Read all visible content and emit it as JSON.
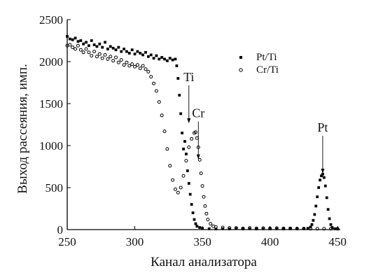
{
  "chart_data": {
    "type": "scatter",
    "xlabel": "Канал анализатора",
    "ylabel": "Выход рассеяния, имп.",
    "xlim": [
      250,
      452
    ],
    "ylim": [
      0,
      2500
    ],
    "x_ticks": [
      "250",
      "300",
      "350",
      "400",
      "450"
    ],
    "y_ticks": [
      "0",
      "500",
      "1000",
      "1500",
      "2000",
      "2500"
    ],
    "grid": false,
    "legend_position": "top-right",
    "series": [
      {
        "name": "Pt/Ti",
        "marker": "square",
        "color": "#000000",
        "points": [
          [
            250,
            2300
          ],
          [
            252,
            2270
          ],
          [
            254,
            2260
          ],
          [
            256,
            2280
          ],
          [
            258,
            2240
          ],
          [
            260,
            2250
          ],
          [
            262,
            2210
          ],
          [
            264,
            2230
          ],
          [
            266,
            2190
          ],
          [
            268,
            2250
          ],
          [
            270,
            2200
          ],
          [
            272,
            2180
          ],
          [
            274,
            2210
          ],
          [
            276,
            2170
          ],
          [
            278,
            2230
          ],
          [
            280,
            2150
          ],
          [
            282,
            2180
          ],
          [
            284,
            2160
          ],
          [
            286,
            2140
          ],
          [
            288,
            2170
          ],
          [
            290,
            2120
          ],
          [
            292,
            2150
          ],
          [
            294,
            2120
          ],
          [
            296,
            2100
          ],
          [
            298,
            2140
          ],
          [
            300,
            2090
          ],
          [
            302,
            2120
          ],
          [
            304,
            2100
          ],
          [
            306,
            2080
          ],
          [
            308,
            2110
          ],
          [
            310,
            2060
          ],
          [
            312,
            2080
          ],
          [
            314,
            2040
          ],
          [
            316,
            2070
          ],
          [
            318,
            2030
          ],
          [
            320,
            2050
          ],
          [
            322,
            2030
          ],
          [
            324,
            2010
          ],
          [
            326,
            2040
          ],
          [
            328,
            2020
          ],
          [
            330,
            2030
          ],
          [
            331,
            1950
          ],
          [
            332,
            1800
          ],
          [
            333,
            1600
          ],
          [
            334,
            1380
          ],
          [
            335,
            1150
          ],
          [
            336,
            960
          ],
          [
            337,
            1050
          ],
          [
            338,
            900
          ],
          [
            339,
            700
          ],
          [
            340,
            550
          ],
          [
            341,
            420
          ],
          [
            342,
            300
          ],
          [
            343,
            200
          ],
          [
            344,
            120
          ],
          [
            345,
            70
          ],
          [
            346,
            40
          ],
          [
            348,
            25
          ],
          [
            350,
            15
          ],
          [
            355,
            10
          ],
          [
            360,
            8
          ],
          [
            365,
            10
          ],
          [
            370,
            8
          ],
          [
            375,
            12
          ],
          [
            380,
            8
          ],
          [
            385,
            10
          ],
          [
            390,
            8
          ],
          [
            395,
            10
          ],
          [
            400,
            8
          ],
          [
            405,
            10
          ],
          [
            410,
            8
          ],
          [
            415,
            10
          ],
          [
            420,
            10
          ],
          [
            425,
            12
          ],
          [
            428,
            15
          ],
          [
            430,
            30
          ],
          [
            431,
            60
          ],
          [
            432,
            110
          ],
          [
            433,
            180
          ],
          [
            434,
            280
          ],
          [
            435,
            390
          ],
          [
            436,
            500
          ],
          [
            437,
            590
          ],
          [
            438,
            640
          ],
          [
            439,
            660
          ],
          [
            440,
            620
          ],
          [
            441,
            520
          ],
          [
            442,
            380
          ],
          [
            443,
            240
          ],
          [
            444,
            130
          ],
          [
            445,
            60
          ],
          [
            446,
            25
          ],
          [
            448,
            10
          ],
          [
            450,
            8
          ]
        ]
      },
      {
        "name": "Cr/Ti",
        "marker": "circle",
        "color": "#000000",
        "points": [
          [
            250,
            2190
          ],
          [
            252,
            2200
          ],
          [
            254,
            2170
          ],
          [
            256,
            2150
          ],
          [
            258,
            2190
          ],
          [
            260,
            2140
          ],
          [
            262,
            2110
          ],
          [
            264,
            2150
          ],
          [
            266,
            2110
          ],
          [
            268,
            2070
          ],
          [
            270,
            2120
          ],
          [
            272,
            2060
          ],
          [
            274,
            2090
          ],
          [
            276,
            2040
          ],
          [
            278,
            2080
          ],
          [
            280,
            2030
          ],
          [
            282,
            2060
          ],
          [
            284,
            2010
          ],
          [
            286,
            2050
          ],
          [
            288,
            1990
          ],
          [
            290,
            2020
          ],
          [
            292,
            1960
          ],
          [
            294,
            1990
          ],
          [
            296,
            1950
          ],
          [
            298,
            1970
          ],
          [
            300,
            1940
          ],
          [
            302,
            1960
          ],
          [
            304,
            1920
          ],
          [
            306,
            1950
          ],
          [
            308,
            1910
          ],
          [
            310,
            1880
          ],
          [
            312,
            1820
          ],
          [
            314,
            1740
          ],
          [
            316,
            1650
          ],
          [
            318,
            1520
          ],
          [
            320,
            1360
          ],
          [
            322,
            1170
          ],
          [
            324,
            960
          ],
          [
            326,
            760
          ],
          [
            328,
            590
          ],
          [
            330,
            480
          ],
          [
            332,
            440
          ],
          [
            334,
            500
          ],
          [
            336,
            640
          ],
          [
            338,
            820
          ],
          [
            340,
            980
          ],
          [
            342,
            1080
          ],
          [
            344,
            1150
          ],
          [
            345,
            1160
          ],
          [
            346,
            1090
          ],
          [
            347,
            980
          ],
          [
            348,
            830
          ],
          [
            349,
            670
          ],
          [
            350,
            520
          ],
          [
            351,
            390
          ],
          [
            352,
            280
          ],
          [
            353,
            190
          ],
          [
            354,
            120
          ],
          [
            356,
            70
          ],
          [
            358,
            40
          ],
          [
            360,
            30
          ],
          [
            365,
            25
          ],
          [
            370,
            20
          ],
          [
            375,
            20
          ],
          [
            380,
            15
          ],
          [
            385,
            20
          ],
          [
            390,
            15
          ],
          [
            395,
            18
          ],
          [
            400,
            15
          ],
          [
            405,
            18
          ],
          [
            410,
            15
          ],
          [
            415,
            15
          ],
          [
            420,
            12
          ],
          [
            425,
            12
          ],
          [
            430,
            10
          ],
          [
            435,
            10
          ],
          [
            440,
            10
          ],
          [
            445,
            10
          ],
          [
            450,
            10
          ]
        ]
      }
    ],
    "annotations": [
      {
        "label": "Ti",
        "x": 340,
        "y": 1250
      },
      {
        "label": "Cr",
        "x": 347,
        "y": 820
      },
      {
        "label": "Pt",
        "x": 439,
        "y": 650
      }
    ]
  }
}
